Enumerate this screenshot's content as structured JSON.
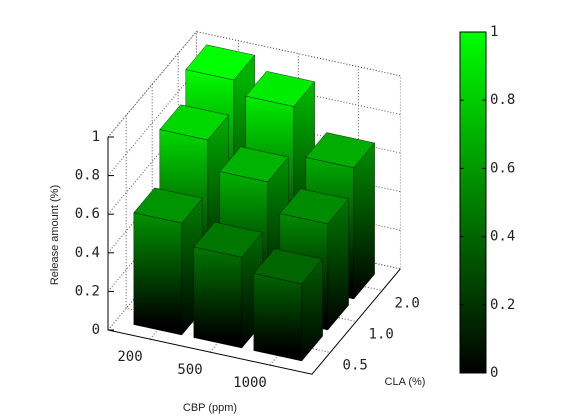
{
  "chart_data": {
    "type": "bar3d",
    "x_label": "CBP (ppm)",
    "y_label": "CLA (%)",
    "z_label": "Release amount (%)",
    "x_categories": [
      "200",
      "500",
      "1000"
    ],
    "y_categories": [
      "0.5",
      "1.0",
      "2.0"
    ],
    "values": [
      [
        0.58,
        0.47,
        0.4
      ],
      [
        0.85,
        0.7,
        0.55
      ],
      [
        1.0,
        0.93,
        0.68
      ]
    ],
    "zlim": [
      0,
      1
    ],
    "zticks": [
      0,
      0.2,
      0.4,
      0.6,
      0.8,
      1
    ],
    "colormap": [
      "#000000",
      "#00ff00"
    ],
    "colorbar": {
      "lim": [
        0,
        1
      ],
      "ticks": [
        0,
        0.2,
        0.4,
        0.6,
        0.8,
        1
      ]
    },
    "grid": true
  }
}
